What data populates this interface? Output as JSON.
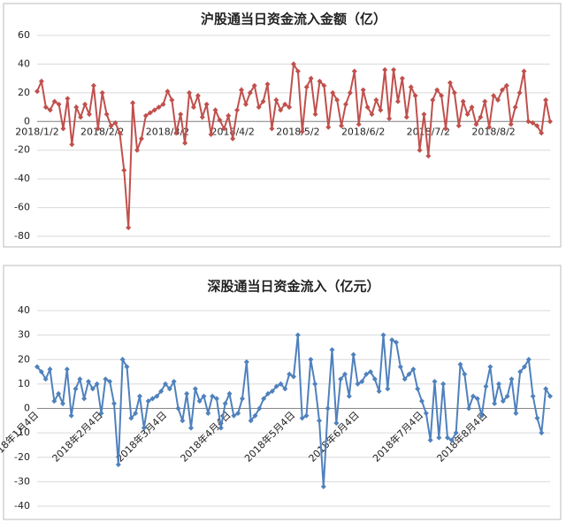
{
  "chart_data": [
    {
      "type": "line",
      "title": "沪股通当日资金流入金额（亿）",
      "categories": [
        "2018/1/2",
        null,
        null,
        null,
        null,
        null,
        null,
        null,
        null,
        null,
        null,
        null,
        null,
        null,
        null,
        "2018/2/2",
        null,
        null,
        null,
        null,
        null,
        null,
        null,
        null,
        null,
        null,
        null,
        null,
        null,
        null,
        "2018/3/2",
        null,
        null,
        null,
        null,
        null,
        null,
        null,
        null,
        null,
        null,
        null,
        null,
        null,
        null,
        "2018/4/2",
        null,
        null,
        null,
        null,
        null,
        null,
        null,
        null,
        null,
        null,
        null,
        null,
        null,
        null,
        "2018/5/2",
        null,
        null,
        null,
        null,
        null,
        null,
        null,
        null,
        null,
        null,
        null,
        null,
        null,
        null,
        "2018/6/2",
        null,
        null,
        null,
        null,
        null,
        null,
        null,
        null,
        null,
        null,
        null,
        null,
        null,
        null,
        "2018/7/2",
        null,
        null,
        null,
        null,
        null,
        null,
        null,
        null,
        null,
        null,
        null,
        null,
        null,
        null,
        "2018/8/2",
        null,
        null,
        null,
        null,
        null,
        null,
        null,
        null,
        null,
        null,
        null,
        null,
        null
      ],
      "series": [
        {
          "color": "#c0504d",
          "values": [
            21,
            28,
            10,
            8,
            14,
            12,
            -5,
            16,
            -16,
            10,
            3,
            12,
            5,
            25,
            -5,
            20,
            5,
            -3,
            -1,
            -8,
            -34,
            -74,
            13,
            -20,
            -12,
            4,
            6,
            8,
            10,
            12,
            21,
            15,
            -8,
            5,
            -15,
            20,
            10,
            18,
            3,
            12,
            -9,
            8,
            1,
            -5,
            4,
            -12,
            8,
            22,
            12,
            20,
            25,
            10,
            14,
            26,
            -5,
            15,
            8,
            12,
            10,
            40,
            35,
            -7,
            24,
            30,
            5,
            28,
            25,
            -4,
            20,
            15,
            -3,
            12,
            20,
            35,
            -2,
            22,
            10,
            5,
            15,
            8,
            36,
            2,
            36,
            14,
            30,
            3,
            24,
            18,
            -20,
            5,
            -24,
            15,
            22,
            18,
            -5,
            27,
            20,
            -3,
            14,
            5,
            10,
            -2,
            3,
            14,
            -4,
            18,
            15,
            22,
            25,
            -2,
            10,
            20,
            35,
            0,
            -1,
            -3,
            -8,
            15,
            0
          ]
        }
      ],
      "ylim": [
        -80,
        60
      ],
      "yticks": [
        -80,
        -60,
        -40,
        -20,
        0,
        20,
        40,
        60
      ],
      "grid": true
    },
    {
      "type": "line",
      "title": "深股通当日资金流入（亿元）",
      "categories": [
        "2018年1月4日",
        null,
        null,
        null,
        null,
        null,
        null,
        null,
        null,
        null,
        null,
        null,
        null,
        null,
        null,
        "2018年2月4日",
        null,
        null,
        null,
        null,
        null,
        null,
        null,
        null,
        null,
        null,
        null,
        null,
        null,
        null,
        "2018年3月4日",
        null,
        null,
        null,
        null,
        null,
        null,
        null,
        null,
        null,
        null,
        null,
        null,
        null,
        null,
        "2018年4月4日",
        null,
        null,
        null,
        null,
        null,
        null,
        null,
        null,
        null,
        null,
        null,
        null,
        null,
        null,
        "2018年5月4日",
        null,
        null,
        null,
        null,
        null,
        null,
        null,
        null,
        null,
        null,
        null,
        null,
        null,
        null,
        "2018年6月4日",
        null,
        null,
        null,
        null,
        null,
        null,
        null,
        null,
        null,
        null,
        null,
        null,
        null,
        null,
        "2018年7月4日",
        null,
        null,
        null,
        null,
        null,
        null,
        null,
        null,
        null,
        null,
        null,
        null,
        null,
        null,
        "2018年8月4日",
        null,
        null,
        null,
        null,
        null,
        null,
        null,
        null,
        null,
        null,
        null,
        null,
        null,
        null,
        null
      ],
      "series": [
        {
          "color": "#4f81bd",
          "values": [
            17,
            15,
            12,
            16,
            3,
            6,
            2,
            16,
            -3,
            8,
            12,
            4,
            11,
            8,
            10,
            -2,
            12,
            11,
            2,
            -23,
            20,
            17,
            -4,
            -2,
            5,
            -8,
            3,
            4,
            5,
            7,
            10,
            8,
            11,
            0,
            -5,
            6,
            -8,
            8,
            3,
            5,
            -2,
            5,
            4,
            -8,
            2,
            6,
            -3,
            -2,
            4,
            19,
            -5,
            -3,
            0,
            4,
            6,
            7,
            9,
            10,
            8,
            14,
            13,
            30,
            -4,
            -3,
            20,
            10,
            -5,
            -32,
            0,
            24,
            -6,
            12,
            14,
            5,
            22,
            10,
            11,
            14,
            15,
            12,
            7,
            30,
            8,
            28,
            27,
            17,
            12,
            14,
            16,
            8,
            3,
            -2,
            -13,
            11,
            -12,
            10,
            -12,
            -13,
            -10,
            18,
            14,
            0,
            5,
            4,
            -3,
            9,
            17,
            2,
            10,
            3,
            5,
            12,
            -2,
            15,
            17,
            20,
            5,
            -4,
            -10,
            8,
            5
          ]
        }
      ],
      "ylim": [
        -40,
        40
      ],
      "yticks": [
        -40,
        -30,
        -20,
        -10,
        0,
        10,
        20,
        30,
        40
      ],
      "grid": true
    }
  ]
}
